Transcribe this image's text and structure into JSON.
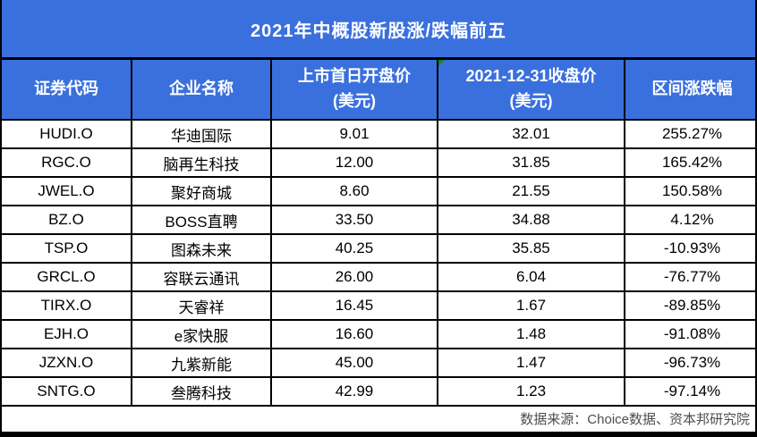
{
  "accent_color": "#3A70DD",
  "flag_color": "#168716",
  "chart_data": {
    "type": "table",
    "title": "2021年中概股新股涨/跌幅前五",
    "columns": [
      {
        "key": "code",
        "line1": "证券代码",
        "line2": ""
      },
      {
        "key": "name",
        "line1": "企业名称",
        "line2": ""
      },
      {
        "key": "open",
        "line1": "上市首日开盘价",
        "line2": "(美元)"
      },
      {
        "key": "close",
        "line1": "2021-12-31收盘价",
        "line2": "(美元)",
        "flag": true
      },
      {
        "key": "change",
        "line1": "区间涨跌幅",
        "line2": ""
      }
    ],
    "rows": [
      [
        "HUDI.O",
        "华迪国际",
        "9.01",
        "32.01",
        "255.27%"
      ],
      [
        "RGC.O",
        "脑再生科技",
        "12.00",
        "31.85",
        "165.42%"
      ],
      [
        "JWEL.O",
        "聚好商城",
        "8.60",
        "21.55",
        "150.58%"
      ],
      [
        "BZ.O",
        "BOSS直聘",
        "33.50",
        "34.88",
        "4.12%"
      ],
      [
        "TSP.O",
        "图森未来",
        "40.25",
        "35.85",
        "-10.93%"
      ],
      [
        "GRCL.O",
        "容联云通讯",
        "26.00",
        "6.04",
        "-76.77%"
      ],
      [
        "TIRX.O",
        "天睿祥",
        "16.45",
        "1.67",
        "-89.85%"
      ],
      [
        "EJH.O",
        "e家快服",
        "16.60",
        "1.48",
        "-91.08%"
      ],
      [
        "JZXN.O",
        "九紫新能",
        "45.00",
        "1.47",
        "-96.73%"
      ],
      [
        "SNTG.O",
        "叁腾科技",
        "42.99",
        "1.23",
        "-97.14%"
      ]
    ],
    "source": "数据来源：Choice数据、资本邦研究院"
  }
}
